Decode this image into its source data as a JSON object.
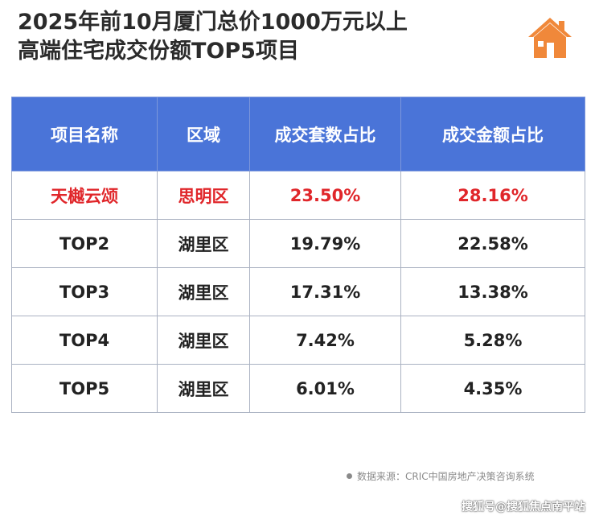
{
  "title": {
    "line1": "2025年前10月厦门总价1000万元以上",
    "line2": "高端住宅成交份额TOP5项目"
  },
  "icons": {
    "logo": "house-icon"
  },
  "colors": {
    "header_bg": "#4a74d8",
    "highlight_text": "#e0262a",
    "logo": "#f0883a"
  },
  "table": {
    "headers": [
      "项目名称",
      "区域",
      "成交套数占比",
      "成交金额占比"
    ],
    "rows": [
      [
        "天樾云颂",
        "思明区",
        "23.50%",
        "28.16%"
      ],
      [
        "TOP2",
        "湖里区",
        "19.79%",
        "22.58%"
      ],
      [
        "TOP3",
        "湖里区",
        "17.31%",
        "13.38%"
      ],
      [
        "TOP4",
        "湖里区",
        "7.42%",
        "5.28%"
      ],
      [
        "TOP5",
        "湖里区",
        "6.01%",
        "4.35%"
      ]
    ]
  },
  "source": "数据来源：CRIC中国房地产决策咨询系统",
  "watermark": "搜狐号@搜狐焦点南平站"
}
